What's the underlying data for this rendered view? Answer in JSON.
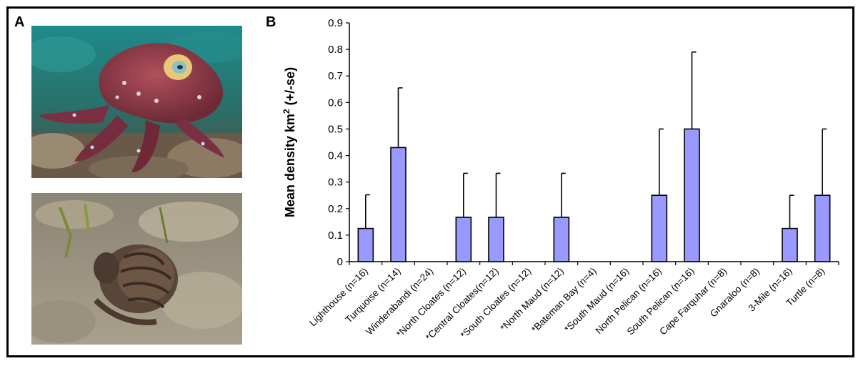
{
  "panels": {
    "a_label": "A",
    "b_label": "B"
  },
  "chart_data": {
    "type": "bar",
    "categories": [
      "Lighthouse (n=16)",
      "Turquoise (n=14)",
      "Winderabandi (n=24)",
      "*North Cloates (n=12)",
      "*Central Cloates(n=12)",
      "*South Cloates (n=12)",
      "*North Maud (n=12)",
      "*Bateman Bay (n=4)",
      "*South Maud (n=16)",
      "North Pelican (n=16)",
      "South Pelican (n=16)",
      "Cape Farquhar (n=8)",
      "Gnaraloo (n=8)",
      "3-Mile (n=16)",
      "Turtle (n=8)"
    ],
    "values": [
      0.125,
      0.43,
      0,
      0.167,
      0.167,
      0,
      0.167,
      0,
      0,
      0.25,
      0.5,
      0,
      0,
      0.125,
      0.25
    ],
    "error": [
      0.127,
      0.225,
      0,
      0.166,
      0.166,
      0,
      0.166,
      0,
      0,
      0.25,
      0.29,
      0,
      0,
      0.125,
      0.25
    ],
    "ylim": [
      0,
      0.9
    ],
    "yticks": [
      "0",
      "0.1",
      "0.2",
      "0.3",
      "0.4",
      "0.5",
      "0.6",
      "0.7",
      "0.8",
      "0.9"
    ],
    "ylabel_main": "Mean density km",
    "ylabel_sup": "2",
    "ylabel_tail": " (+/-se)",
    "xlabel": "",
    "grid": false,
    "bar_color": "#9999ff",
    "edge_color": "#000000"
  }
}
